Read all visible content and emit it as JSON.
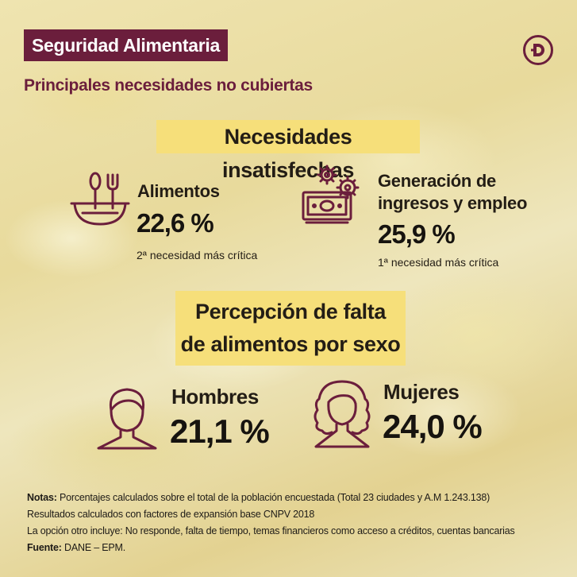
{
  "header": {
    "tag": "Seguridad Alimentaria",
    "subtitle": "Principales necesidades no cubiertas",
    "logo_letter": "D"
  },
  "section1": {
    "title": "Necesidades insatisfechas",
    "items": [
      {
        "icon": "food-bowl-cutlery-icon",
        "label": "Alimentos",
        "value": "22,6 %",
        "note": "2ª necesidad más crítica"
      },
      {
        "icon": "money-gears-icon",
        "label_line1": "Generación de",
        "label_line2": "ingresos y empleo",
        "value": "25,9 %",
        "note": "1ª necesidad más crítica"
      }
    ]
  },
  "section2": {
    "title_line1": "Percepción de falta",
    "title_line2": "de alimentos por sexo",
    "items": [
      {
        "icon": "man-icon",
        "label": "Hombres",
        "value": "21,1 %"
      },
      {
        "icon": "woman-icon",
        "label": "Mujeres",
        "value": "24,0 %"
      }
    ]
  },
  "notes": {
    "line1_label": "Notas:",
    "line1_text": " Porcentajes calculados sobre el total de la población encuestada (Total 23 ciudades y A.M 1.243.138)",
    "line2": "Resultados calculados con factores de expansión base CNPV 2018",
    "line3": "La opción otro incluye: No responde, falta de tiempo, temas financieros como acceso a créditos, cuentas bancarias",
    "source_label": "Fuente:",
    "source_text": " DANE – EPM."
  },
  "colors": {
    "brand": "#6b1e3c",
    "highlight": "#f6df7a",
    "background": "#ece0a8"
  }
}
